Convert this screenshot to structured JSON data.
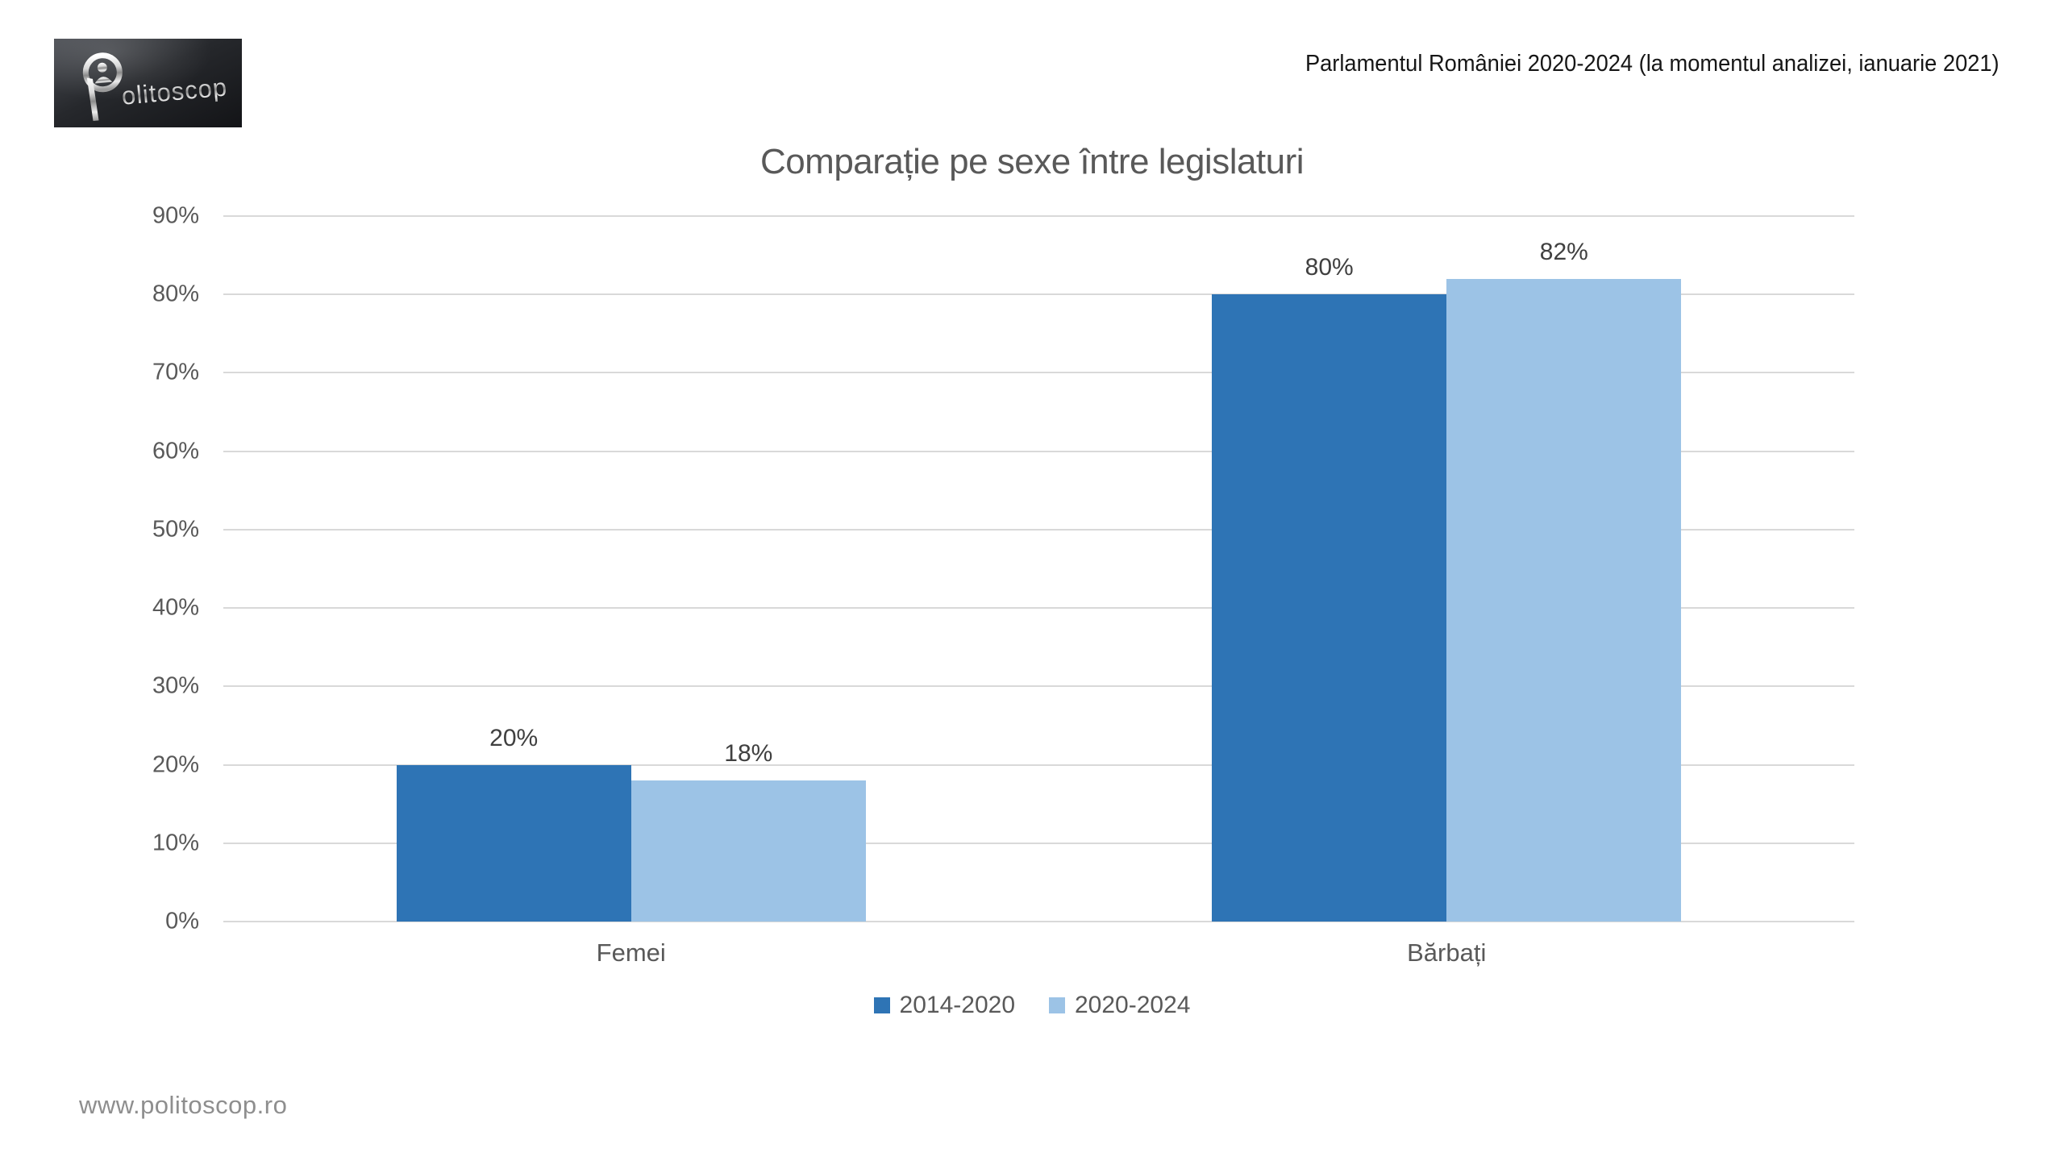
{
  "logo": {
    "text": "Politoscop"
  },
  "header": {
    "note": "Parlamentul României 2020-2024 (la momentul analizei, ianuarie 2021)"
  },
  "chart_data": {
    "type": "bar",
    "title": "Comparație pe sexe între legislaturi",
    "categories": [
      "Femei",
      "Bărbați"
    ],
    "series": [
      {
        "name": "2014-2020",
        "color": "#2E74B5",
        "values": [
          20,
          80
        ],
        "labels": [
          "20%",
          "80%"
        ]
      },
      {
        "name": "2020-2024",
        "color": "#9CC3E6",
        "values": [
          18,
          82
        ],
        "labels": [
          "18%",
          "82%"
        ]
      }
    ],
    "ylim": [
      0,
      90
    ],
    "yticks": [
      {
        "value": 0,
        "label": "0%"
      },
      {
        "value": 10,
        "label": "10%"
      },
      {
        "value": 20,
        "label": "20%"
      },
      {
        "value": 30,
        "label": "30%"
      },
      {
        "value": 40,
        "label": "40%"
      },
      {
        "value": 50,
        "label": "50%"
      },
      {
        "value": 60,
        "label": "60%"
      },
      {
        "value": 70,
        "label": "70%"
      },
      {
        "value": 80,
        "label": "80%"
      },
      {
        "value": 90,
        "label": "90%"
      }
    ],
    "grid": true,
    "gridline_color": "#D9D9D9",
    "legend_position": "bottom",
    "text_color": "#595959",
    "value_label_color": "#404040"
  },
  "footer": {
    "url": "www.politoscop.ro"
  }
}
